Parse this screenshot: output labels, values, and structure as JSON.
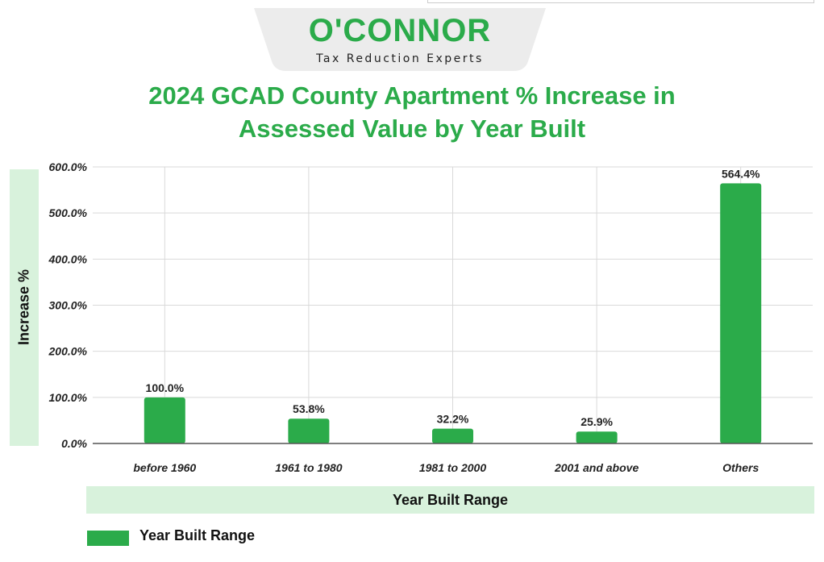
{
  "brand": {
    "name": "O'CONNOR",
    "tagline": "Tax Reduction Experts"
  },
  "chart_data": {
    "type": "bar",
    "title": "2024 GCAD County Apartment % Increase in Assessed Value by Year Built",
    "title_lines": [
      "2024 GCAD County Apartment % Increase in",
      "Assessed Value by Year Built"
    ],
    "xlabel": "Year Built Range",
    "ylabel": "Increase %",
    "categories": [
      "before 1960",
      "1961 to 1980",
      "1981 to 2000",
      "2001 and above",
      "Others"
    ],
    "series": [
      {
        "name": "Year Built Range",
        "values": [
          100.0,
          53.8,
          32.2,
          25.9,
          564.4
        ]
      }
    ],
    "data_labels": [
      "100.0%",
      "53.8%",
      "32.2%",
      "25.9%",
      "564.4%"
    ],
    "ylim": [
      0,
      600
    ],
    "yticks": [
      {
        "value": 600,
        "label": "600.0%"
      },
      {
        "value": 500,
        "label": "500.0%"
      },
      {
        "value": 400,
        "label": "400.0%"
      },
      {
        "value": 300,
        "label": "300.0%"
      },
      {
        "value": 200,
        "label": "200.0%"
      },
      {
        "value": 100,
        "label": "100.0%"
      },
      {
        "value": 0,
        "label": "0.0%"
      }
    ],
    "grid": true,
    "legend_position": "bottom-left",
    "colors": {
      "bar": "#2bab4a",
      "title": "#2bab4a",
      "axis_band": "#d8f2dc",
      "grid": "#d9d9d9"
    }
  }
}
